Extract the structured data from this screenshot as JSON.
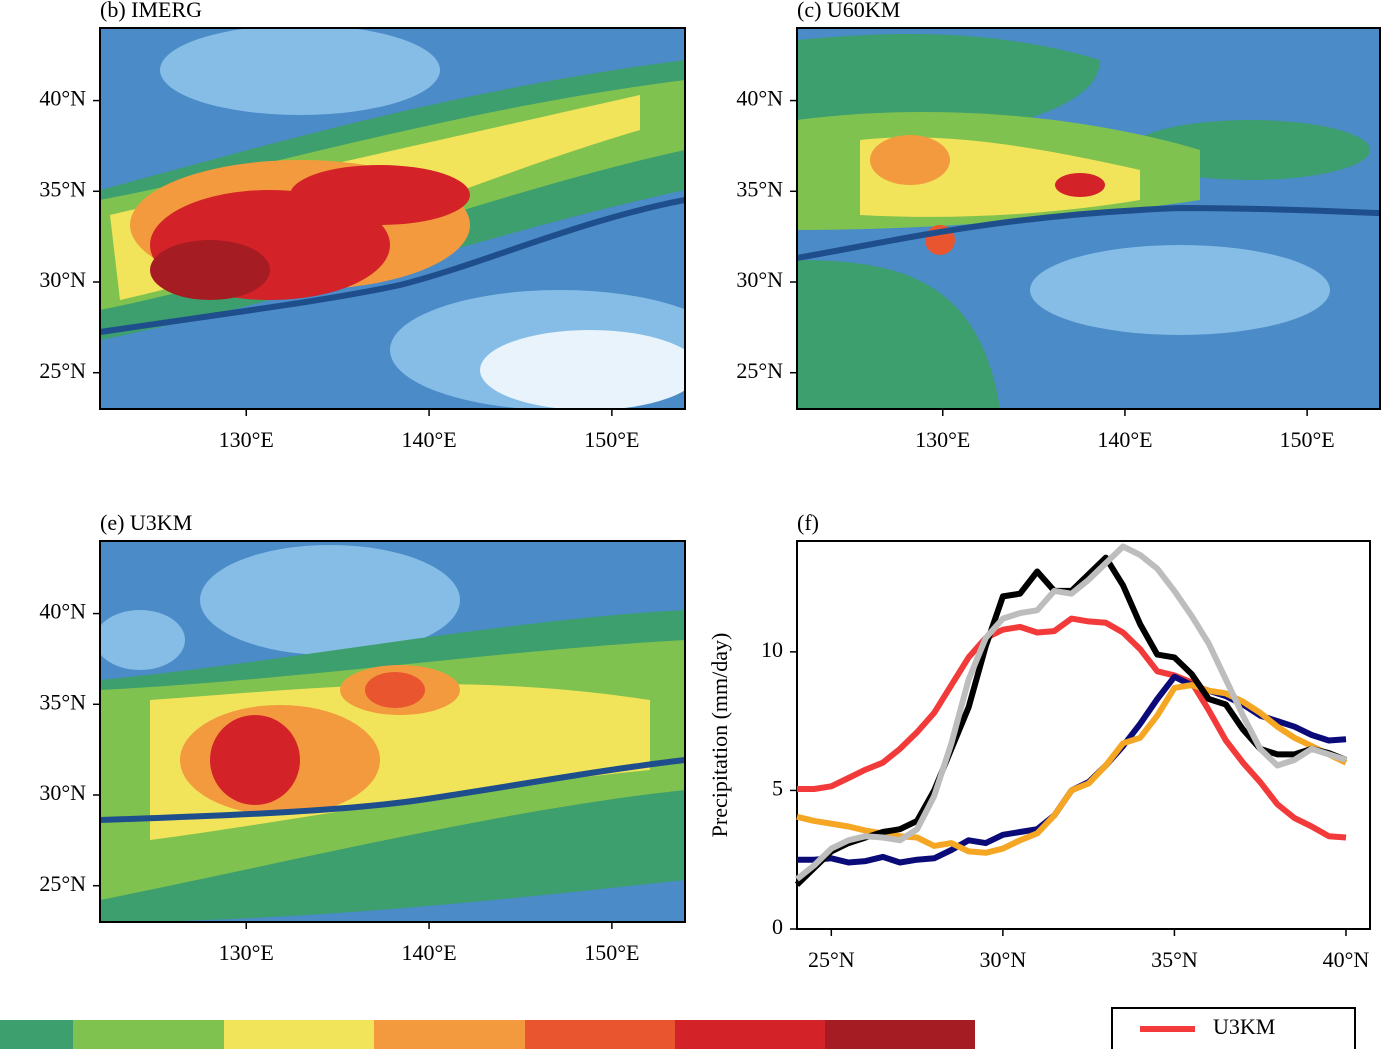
{
  "chart_data": [
    {
      "type": "map",
      "title": "(b) IMERG",
      "xlim": [
        122,
        154
      ],
      "ylim": [
        23,
        44
      ],
      "xticks": [
        {
          "value": 130,
          "label": "130°E"
        },
        {
          "value": 140,
          "label": "140°E"
        },
        {
          "value": 150,
          "label": "150°E"
        }
      ],
      "yticks": [
        {
          "value": 25,
          "label": "25°N"
        },
        {
          "value": 30,
          "label": "30°N"
        },
        {
          "value": 35,
          "label": "35°N"
        },
        {
          "value": 40,
          "label": "40°N"
        }
      ]
    },
    {
      "type": "map",
      "title": "(c) U60KM",
      "xlim": [
        122,
        154
      ],
      "ylim": [
        23,
        44
      ],
      "xticks": [
        {
          "value": 130,
          "label": "130°E"
        },
        {
          "value": 140,
          "label": "140°E"
        },
        {
          "value": 150,
          "label": "150°E"
        }
      ],
      "yticks": [
        {
          "value": 25,
          "label": "25°N"
        },
        {
          "value": 30,
          "label": "30°N"
        },
        {
          "value": 35,
          "label": "35°N"
        },
        {
          "value": 40,
          "label": "40°N"
        }
      ]
    },
    {
      "type": "map",
      "title": "(e) U3KM",
      "xlim": [
        122,
        154
      ],
      "ylim": [
        23,
        44
      ],
      "xticks": [
        {
          "value": 130,
          "label": "130°E"
        },
        {
          "value": 140,
          "label": "140°E"
        },
        {
          "value": 150,
          "label": "150°E"
        }
      ],
      "yticks": [
        {
          "value": 25,
          "label": "25°N"
        },
        {
          "value": 30,
          "label": "30°N"
        },
        {
          "value": 35,
          "label": "35°N"
        },
        {
          "value": 40,
          "label": "40°N"
        }
      ]
    },
    {
      "type": "line",
      "title": "(f)",
      "y_label": "Precipitation (mm/day)",
      "xlim": [
        24,
        40.7
      ],
      "ylim": [
        0,
        14
      ],
      "xticks": [
        {
          "value": 25,
          "label": "25°N"
        },
        {
          "value": 30,
          "label": "30°N"
        },
        {
          "value": 35,
          "label": "35°N"
        },
        {
          "value": 40,
          "label": "40°N"
        }
      ],
      "yticks": [
        0,
        5,
        10
      ],
      "x": [
        24,
        24.5,
        25,
        25.5,
        26,
        26.5,
        27,
        27.5,
        28,
        28.5,
        29,
        29.5,
        30,
        30.5,
        31,
        31.5,
        32,
        32.5,
        33,
        33.5,
        34,
        34.5,
        35,
        35.5,
        36,
        36.5,
        37,
        37.5,
        38,
        38.5,
        39,
        39.5,
        40
      ],
      "series": [
        {
          "name": "U3KM",
          "color": "#f23a3a",
          "values": [
            5.05,
            5.05,
            5.15,
            5.45,
            5.75,
            6.0,
            6.5,
            7.1,
            7.8,
            8.8,
            9.8,
            10.5,
            10.8,
            10.9,
            10.7,
            10.75,
            11.2,
            11.1,
            11.05,
            10.7,
            10.1,
            9.3,
            9.15,
            8.9,
            7.9,
            6.8,
            6.0,
            5.3,
            4.5,
            4.0,
            3.7,
            3.35,
            3.3
          ]
        },
        {
          "color": "#0a0a78",
          "values": [
            2.5,
            2.5,
            2.55,
            2.4,
            2.45,
            2.6,
            2.4,
            2.5,
            2.55,
            2.85,
            3.2,
            3.1,
            3.4,
            3.5,
            3.6,
            4.1,
            5.0,
            5.3,
            5.9,
            6.6,
            7.4,
            8.3,
            9.1,
            8.8,
            8.6,
            8.4,
            8.1,
            7.7,
            7.5,
            7.3,
            7.0,
            6.8,
            6.85
          ]
        },
        {
          "color": "#f5a623",
          "values": [
            4.05,
            3.9,
            3.8,
            3.7,
            3.55,
            3.45,
            3.35,
            3.3,
            3.0,
            3.1,
            2.8,
            2.75,
            2.9,
            3.2,
            3.45,
            4.1,
            5.0,
            5.25,
            5.9,
            6.7,
            6.9,
            7.7,
            8.7,
            8.8,
            8.6,
            8.5,
            8.2,
            7.8,
            7.3,
            6.9,
            6.6,
            6.3,
            6.0
          ]
        },
        {
          "color": "#000000",
          "values": [
            1.6,
            2.2,
            2.8,
            3.1,
            3.3,
            3.5,
            3.6,
            3.9,
            5.0,
            6.5,
            8.0,
            10.2,
            12.0,
            12.1,
            12.9,
            12.2,
            12.2,
            12.8,
            13.4,
            12.4,
            11.0,
            9.9,
            9.8,
            9.2,
            8.3,
            8.1,
            7.2,
            6.5,
            6.3,
            6.3,
            6.5,
            6.35,
            6.1
          ]
        },
        {
          "color": "#bdbdbd",
          "values": [
            1.8,
            2.3,
            2.9,
            3.2,
            3.35,
            3.3,
            3.2,
            3.6,
            4.8,
            6.7,
            9.0,
            10.5,
            11.2,
            11.4,
            11.5,
            12.2,
            12.1,
            12.6,
            13.2,
            13.8,
            13.5,
            13.0,
            12.2,
            11.3,
            10.3,
            9.0,
            7.7,
            6.5,
            5.9,
            6.1,
            6.5,
            6.3,
            6.1
          ]
        }
      ]
    }
  ]
}
